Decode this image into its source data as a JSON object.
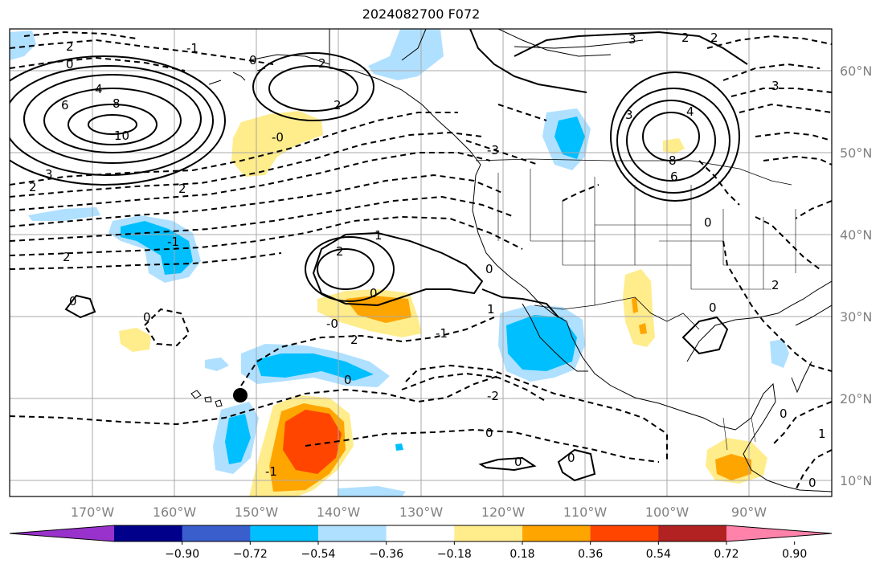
{
  "title": "2024082700 F072",
  "map": {
    "lon_labels": [
      "170°W",
      "160°W",
      "150°W",
      "140°W",
      "130°W",
      "120°W",
      "110°W",
      "100°W",
      "90°W"
    ],
    "lat_labels": [
      "60°N",
      "50°N",
      "40°N",
      "30°N",
      "20°N",
      "10°N"
    ],
    "contour_labels": [
      {
        "text": "2"
      },
      {
        "text": "0"
      },
      {
        "text": "-1"
      },
      {
        "text": "4"
      },
      {
        "text": "6"
      },
      {
        "text": "8"
      },
      {
        "text": "10"
      },
      {
        "text": "3"
      },
      {
        "text": "2"
      },
      {
        "text": "0"
      },
      {
        "text": "2"
      },
      {
        "text": "2"
      },
      {
        "text": "-0"
      },
      {
        "text": "2"
      },
      {
        "text": "-1"
      },
      {
        "text": "2"
      },
      {
        "text": "1"
      },
      {
        "text": "2"
      },
      {
        "text": "0"
      },
      {
        "text": "0"
      },
      {
        "text": "0"
      },
      {
        "text": "2"
      },
      {
        "text": "-1"
      },
      {
        "text": "-0"
      },
      {
        "text": "-1"
      },
      {
        "text": "0"
      },
      {
        "text": "-3"
      },
      {
        "text": "0"
      },
      {
        "text": "1"
      },
      {
        "text": "-2"
      },
      {
        "text": "0"
      },
      {
        "text": "0"
      },
      {
        "text": "0"
      },
      {
        "text": "3"
      },
      {
        "text": "2"
      },
      {
        "text": "2"
      },
      {
        "text": "3"
      },
      {
        "text": "4"
      },
      {
        "text": "8"
      },
      {
        "text": "6"
      },
      {
        "text": "3"
      },
      {
        "text": "0"
      },
      {
        "text": "0"
      },
      {
        "text": "2"
      },
      {
        "text": "0"
      },
      {
        "text": "0"
      },
      {
        "text": "1"
      }
    ],
    "marker": "black-dot"
  },
  "colorbar": {
    "ticks": [
      "−0.90",
      "−0.72",
      "−0.54",
      "−0.36",
      "−0.18",
      "0.18",
      "0.36",
      "0.54",
      "0.72",
      "0.90"
    ],
    "colors": [
      "#9932cc",
      "#00008b",
      "#3a5fcd",
      "#00bfff",
      "#b0e0ff",
      "#ffffff",
      "#ffec8b",
      "#ffa500",
      "#ff4500",
      "#b22222",
      "#ff82ab"
    ]
  }
}
